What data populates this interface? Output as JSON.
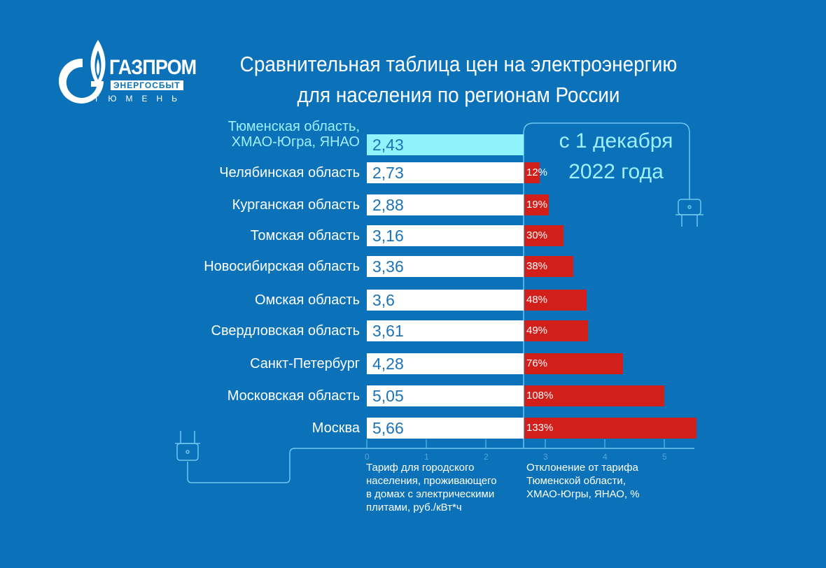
{
  "logo": {
    "brand": "ГАЗПРОМ",
    "sub": "ЭНЕРГОСБЫТ",
    "city": "ТЮМЕНЬ"
  },
  "header": {
    "title_line1": "Сравнительная таблица цен на электроэнергию",
    "title_line2": "для населения по регионам России"
  },
  "callout": {
    "line1": "с 1 декабря",
    "line2": "2022 года"
  },
  "colors": {
    "background": "#0b72ba",
    "tariff_bar": "#ffffff",
    "highlight_bar": "#8ef3fb",
    "deviation_bar": "#d21f1a"
  },
  "chart_data": {
    "type": "bar",
    "orientation": "horizontal",
    "categories": [
      "Тюменская область, ХМАО-Югра, ЯНАО",
      "Челябинская область",
      "Курганская область",
      "Томская область",
      "Новосибирская область",
      "Омская область",
      "Свердловская область",
      "Санкт-Петербург",
      "Московская область",
      "Москва"
    ],
    "highlight_label_lines": [
      "Тюменская область,",
      "ХМАО-Югра, ЯНАО"
    ],
    "series": [
      {
        "name": "Тариф для городского населения, проживающего в домах с электрическими плитами, руб./кВт*ч",
        "values": [
          "2,43",
          "2,73",
          "2,88",
          "3,16",
          "3,36",
          "3,6",
          "3,61",
          "4,28",
          "5,05",
          "5,66"
        ]
      },
      {
        "name": "Отклонение от тарифа Тюменской области, ХМАО-Югры, ЯНАО, %",
        "values": [
          null,
          12,
          19,
          30,
          38,
          48,
          49,
          76,
          108,
          133
        ]
      }
    ],
    "x_ticks": [
      "0",
      "1",
      "2",
      "3",
      "4",
      "5"
    ],
    "xlabel_left_lines": [
      "Тариф для городского",
      "населения, проживающего",
      "в домах с электрическими",
      "плитами, руб./кВт*ч"
    ],
    "xlabel_right_lines": [
      "Отклонение от тарифа",
      "Тюменской области,",
      "ХМАО-Югры, ЯНАО, %"
    ]
  }
}
